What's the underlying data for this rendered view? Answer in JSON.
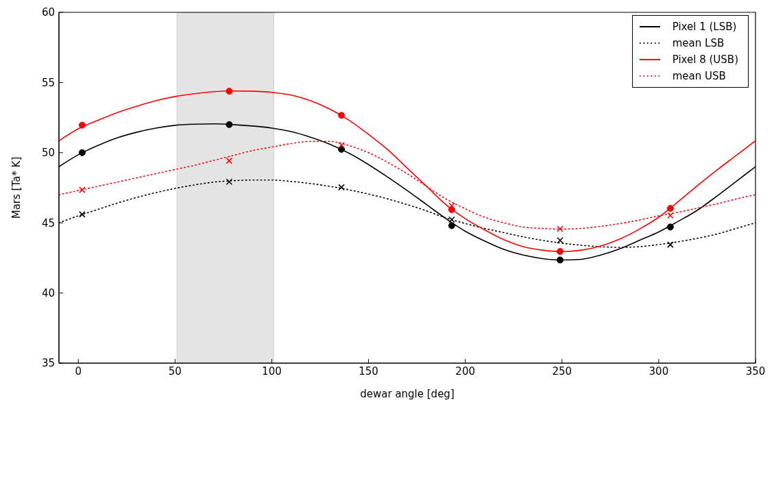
{
  "chart_data": {
    "type": "line",
    "xlabel": "dewar angle [deg]",
    "ylabel": "Mars [Ta* K]",
    "xlim": [
      -10,
      350
    ],
    "xticks": [
      0,
      50,
      100,
      150,
      200,
      250,
      300,
      350
    ],
    "ylim": [
      35,
      60
    ],
    "yticks": [
      35,
      40,
      45,
      50,
      55,
      60
    ],
    "grid": false,
    "legend": "top right",
    "bands": [
      {
        "axis": "x",
        "from": 51,
        "to": 101,
        "color": "#e4e4e4"
      }
    ],
    "series": [
      {
        "name": "Pixel 1 (LSB)",
        "color": "#000000",
        "line_style": "solid",
        "marker": "none",
        "x": [
          -10,
          0,
          10,
          20,
          30,
          40,
          50,
          60,
          70,
          80,
          90,
          100,
          110,
          120,
          130,
          140,
          150,
          160,
          170,
          180,
          190,
          200,
          210,
          220,
          230,
          240,
          250,
          260,
          270,
          280,
          290,
          300,
          310,
          320,
          330,
          340,
          350
        ],
        "values": [
          49.0,
          49.85,
          50.5,
          51.05,
          51.45,
          51.75,
          51.95,
          52.03,
          52.05,
          52.0,
          51.9,
          51.75,
          51.5,
          51.1,
          50.6,
          49.95,
          49.15,
          48.25,
          47.3,
          46.3,
          45.3,
          44.4,
          43.7,
          43.1,
          42.7,
          42.45,
          42.35,
          42.4,
          42.7,
          43.15,
          43.75,
          44.35,
          45.1,
          45.9,
          46.9,
          47.95,
          49.0
        ]
      },
      {
        "name": "mean LSB",
        "color": "#000000",
        "line_style": "dotted",
        "marker": "none",
        "x": [
          -10,
          0,
          10,
          20,
          30,
          40,
          50,
          60,
          70,
          80,
          90,
          100,
          110,
          120,
          130,
          140,
          150,
          160,
          170,
          180,
          190,
          200,
          210,
          220,
          230,
          240,
          250,
          260,
          270,
          280,
          290,
          300,
          310,
          320,
          330,
          340,
          350
        ],
        "values": [
          45.0,
          45.5,
          45.95,
          46.4,
          46.8,
          47.15,
          47.45,
          47.7,
          47.9,
          48.0,
          48.05,
          48.05,
          47.95,
          47.8,
          47.6,
          47.35,
          47.05,
          46.7,
          46.3,
          45.85,
          45.35,
          44.95,
          44.6,
          44.3,
          44.0,
          43.75,
          43.55,
          43.4,
          43.3,
          43.25,
          43.3,
          43.45,
          43.65,
          43.9,
          44.2,
          44.6,
          45.0
        ]
      },
      {
        "name": "Pixel 8 (USB)",
        "color": "#ff0000",
        "line_style": "solid",
        "marker": "none",
        "x": [
          -10,
          0,
          10,
          20,
          30,
          40,
          50,
          60,
          70,
          80,
          90,
          100,
          110,
          120,
          130,
          140,
          150,
          160,
          170,
          180,
          190,
          200,
          210,
          220,
          230,
          240,
          250,
          260,
          270,
          280,
          290,
          300,
          310,
          320,
          330,
          340,
          350
        ],
        "values": [
          50.85,
          51.7,
          52.3,
          52.85,
          53.3,
          53.7,
          54.0,
          54.2,
          54.35,
          54.4,
          54.38,
          54.3,
          54.1,
          53.7,
          53.1,
          52.3,
          51.3,
          50.2,
          48.9,
          47.6,
          46.3,
          45.3,
          44.5,
          43.8,
          43.3,
          43.05,
          42.95,
          43.05,
          43.35,
          43.85,
          44.55,
          45.4,
          46.5,
          47.65,
          48.75,
          49.8,
          50.85
        ]
      },
      {
        "name": "mean USB",
        "color": "#ff0000",
        "line_style": "dotted",
        "marker": "none",
        "x": [
          -10,
          0,
          10,
          20,
          30,
          40,
          50,
          60,
          70,
          80,
          90,
          100,
          110,
          120,
          130,
          140,
          150,
          160,
          170,
          180,
          190,
          200,
          210,
          220,
          230,
          240,
          250,
          260,
          270,
          280,
          290,
          300,
          310,
          320,
          330,
          340,
          350
        ],
        "values": [
          47.0,
          47.3,
          47.6,
          47.9,
          48.2,
          48.5,
          48.8,
          49.1,
          49.45,
          49.8,
          50.15,
          50.4,
          50.65,
          50.8,
          50.8,
          50.5,
          50.0,
          49.3,
          48.5,
          47.6,
          46.7,
          46.0,
          45.4,
          45.0,
          44.7,
          44.6,
          44.55,
          44.6,
          44.75,
          44.95,
          45.2,
          45.5,
          45.75,
          46.05,
          46.35,
          46.7,
          47.0
        ]
      },
      {
        "type": "scatter",
        "color": "#000000",
        "marker": "circle",
        "x": [
          2,
          78,
          136,
          193,
          249,
          306
        ],
        "values": [
          50.0,
          52.0,
          50.24,
          44.8,
          42.35,
          44.7
        ]
      },
      {
        "type": "scatter",
        "color": "#000000",
        "marker": "cross",
        "x": [
          2,
          78,
          136,
          193,
          249,
          306
        ],
        "values": [
          45.6,
          47.93,
          47.53,
          45.23,
          43.75,
          43.44
        ]
      },
      {
        "type": "scatter",
        "color": "#ff0000",
        "marker": "circle",
        "x": [
          2,
          78,
          136,
          193,
          249,
          306
        ],
        "values": [
          51.96,
          54.38,
          52.66,
          45.94,
          42.96,
          46.03
        ]
      },
      {
        "type": "scatter",
        "color": "#ff0000",
        "marker": "cross",
        "x": [
          2,
          78,
          136,
          193,
          249,
          306
        ],
        "values": [
          47.35,
          49.42,
          50.54,
          46.22,
          44.57,
          45.52
        ]
      }
    ]
  }
}
